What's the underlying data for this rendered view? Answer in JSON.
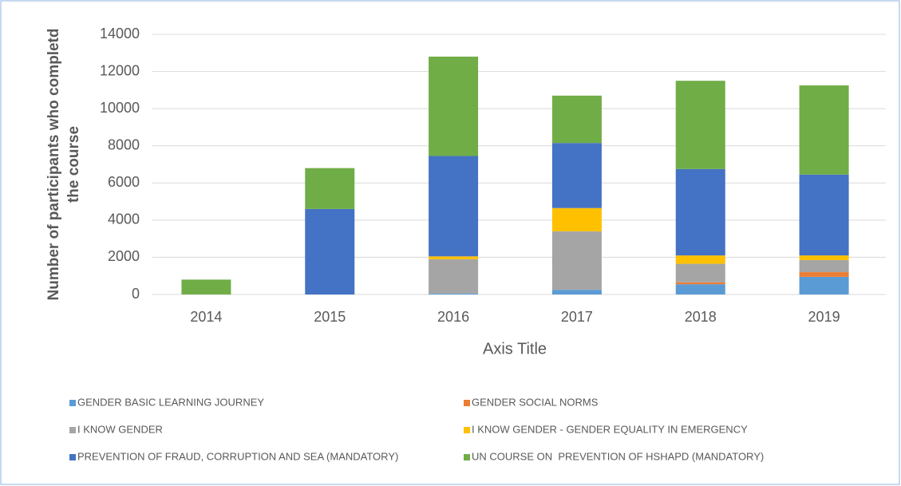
{
  "chart_data": {
    "type": "stacked_bar",
    "y_label": [
      "Number of participants who completd",
      "the course"
    ],
    "x_label": "Axis Title",
    "categories": [
      "2014",
      "2015",
      "2016",
      "2017",
      "2018",
      "2019"
    ],
    "series": [
      {
        "name": "GENDER BASIC LEARNING JOURNEY",
        "color": "#5b9bd5",
        "values": [
          0,
          0,
          50,
          250,
          550,
          950
        ]
      },
      {
        "name": "GENDER SOCIAL NORMS",
        "color": "#ed7d31",
        "values": [
          0,
          0,
          0,
          0,
          100,
          250
        ]
      },
      {
        "name": "I KNOW GENDER",
        "color": "#a5a5a5",
        "values": [
          0,
          0,
          1850,
          3150,
          1000,
          650
        ]
      },
      {
        "name": "I KNOW GENDER - GENDER EQUALITY IN EMERGENCY",
        "color": "#ffc000",
        "values": [
          0,
          0,
          150,
          1250,
          450,
          250
        ]
      },
      {
        "name": "PREVENTION OF FRAUD, CORRUPTION AND SEA (MANDATORY)",
        "color": "#4472c4",
        "values": [
          0,
          4600,
          5400,
          3500,
          4650,
          4350
        ]
      },
      {
        "name": "UN COURSE ON  PREVENTION OF HSHAPD (MANDATORY)",
        "color": "#70ad47",
        "values": [
          800,
          2200,
          5350,
          2550,
          4750,
          4800
        ]
      }
    ],
    "ylim": [
      0,
      14000
    ],
    "yticks": [
      0,
      2000,
      4000,
      6000,
      8000,
      10000,
      12000,
      14000
    ],
    "grid": true
  }
}
